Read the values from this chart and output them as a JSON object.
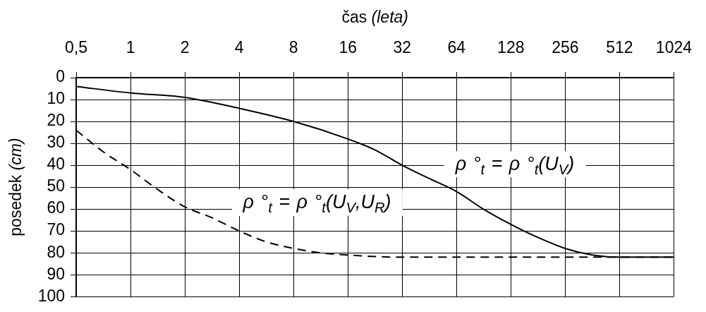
{
  "chart_data": {
    "type": "line",
    "xlabel": "čas (leta)",
    "ylabel": "posedek (cm)",
    "log": "x",
    "xlim": [
      0.5,
      1024
    ],
    "xticks": [
      {
        "value": 0.5,
        "label": "0,5"
      },
      1,
      2,
      4,
      8,
      16,
      32,
      64,
      128,
      256,
      512,
      1024
    ],
    "ylim": [
      100,
      0
    ],
    "yticks": [
      0,
      10,
      20,
      30,
      40,
      50,
      60,
      70,
      80,
      90,
      100
    ],
    "grid": true,
    "legend": false,
    "marker": "none",
    "series": [
      {
        "name": "ρ °$_{t}$ = ρ °$_{t}$(U$_{V}$)",
        "color": "#000000",
        "line_style": "solid",
        "x": [
          0.5,
          1,
          2,
          4,
          8,
          16,
          22.6,
          32,
          45,
          64,
          90,
          128,
          181,
          256,
          362,
          512,
          1024
        ],
        "values": [
          4,
          7,
          9,
          14,
          20,
          28,
          33,
          40,
          46,
          52,
          60,
          67,
          73,
          78,
          81,
          82,
          82
        ]
      },
      {
        "name": "ρ °$_{t}$ = ρ °$_{t}$(U$_{V}$,U$_{R}$)",
        "color": "#000000",
        "line_style": "dashed",
        "x": [
          0.5,
          0.71,
          1,
          1.41,
          2,
          2.83,
          4,
          5.66,
          8,
          11.3,
          16,
          32,
          64,
          128,
          256,
          512,
          1024
        ],
        "values": [
          24,
          34,
          42,
          51,
          59,
          64,
          70,
          75,
          78,
          80,
          81,
          82,
          82,
          82,
          82,
          82,
          82
        ]
      }
    ]
  }
}
